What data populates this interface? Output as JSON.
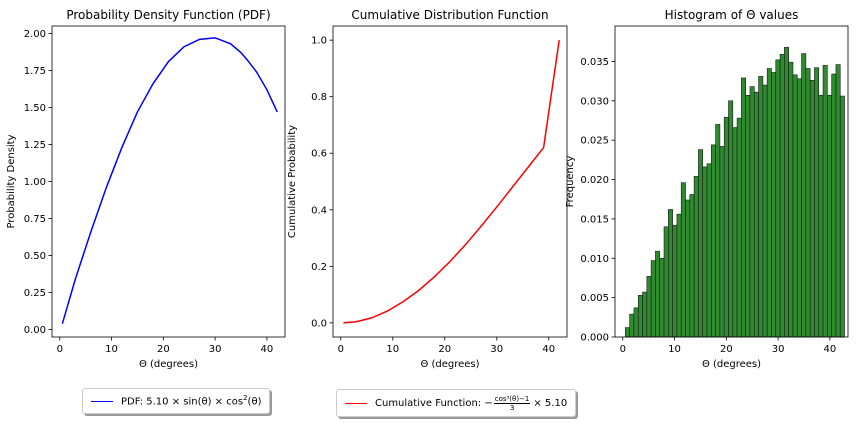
{
  "chart_data": [
    {
      "type": "line",
      "title": "Probability Density Function (PDF)",
      "xlabel": "Θ (degrees)",
      "ylabel": "Probability Density",
      "xlim": [
        -1.5,
        43.5
      ],
      "ylim": [
        -0.05,
        2.05
      ],
      "xticks": [
        0,
        10,
        20,
        30,
        40
      ],
      "yticks": [
        0.0,
        0.25,
        0.5,
        0.75,
        1.0,
        1.25,
        1.5,
        1.75,
        2.0
      ],
      "ytick_labels": [
        "0.00",
        "0.25",
        "0.50",
        "0.75",
        "1.00",
        "1.25",
        "1.50",
        "1.75",
        "2.00"
      ],
      "grid": false,
      "series": [
        {
          "name": "PDF",
          "color": "#0000ff",
          "x": [
            0.5,
            3,
            6,
            9,
            12,
            15,
            18,
            21,
            24,
            27,
            30,
            33,
            35,
            36,
            38,
            40,
            42
          ],
          "y": [
            0.04,
            0.34,
            0.66,
            0.96,
            1.23,
            1.47,
            1.66,
            1.81,
            1.91,
            1.96,
            1.97,
            1.93,
            1.87,
            1.83,
            1.74,
            1.62,
            1.47
          ]
        }
      ],
      "legend": {
        "placement": "below",
        "label_prefix": "PDF: 5.10 × sin(θ) × cos",
        "label_sup": "2",
        "label_suffix": "(θ)"
      }
    },
    {
      "type": "line",
      "title": "Cumulative Distribution Function",
      "xlabel": "Θ (degrees)",
      "ylabel": "Cumulative Probability",
      "xlim": [
        -1.5,
        43.5
      ],
      "ylim": [
        -0.05,
        1.05
      ],
      "xticks": [
        0,
        10,
        20,
        30,
        40
      ],
      "yticks": [
        0.0,
        0.2,
        0.4,
        0.6,
        0.8,
        1.0
      ],
      "ytick_labels": [
        "0.0",
        "0.2",
        "0.4",
        "0.6",
        "0.8",
        "1.0"
      ],
      "grid": false,
      "series": [
        {
          "name": "Cumulative Function",
          "color": "#ff0000",
          "x": [
            0.5,
            3,
            6,
            9,
            12,
            15,
            18,
            21,
            24,
            27,
            30,
            33,
            36,
            39,
            42
          ],
          "y": [
            0.0,
            0.004,
            0.018,
            0.042,
            0.075,
            0.115,
            0.163,
            0.217,
            0.277,
            0.342,
            0.41,
            0.48,
            0.55,
            0.62,
            1.0
          ]
        }
      ],
      "legend": {
        "placement": "below",
        "label_prefix": "Cumulative Function: −",
        "frac_num": "cos³(θ)−1",
        "frac_den": "3",
        "label_suffix": "× 5.10"
      }
    },
    {
      "type": "bar",
      "title": "Histogram of Θ values",
      "xlabel": "Θ (degrees)",
      "ylabel": "Frequency",
      "xlim": [
        -1.5,
        43.5
      ],
      "ylim": [
        0,
        0.0395
      ],
      "xticks": [
        0,
        10,
        20,
        30,
        40
      ],
      "yticks": [
        0.0,
        0.005,
        0.01,
        0.015,
        0.02,
        0.025,
        0.03,
        0.035
      ],
      "ytick_labels": [
        "0.000",
        "0.005",
        "0.010",
        "0.015",
        "0.020",
        "0.025",
        "0.030",
        "0.035"
      ],
      "grid": false,
      "bar_color": "#2e8b2e",
      "bin_start": 0.5,
      "bin_width": 0.83,
      "values": [
        0.0012,
        0.0029,
        0.0037,
        0.0053,
        0.0057,
        0.0077,
        0.0097,
        0.0109,
        0.01,
        0.014,
        0.0162,
        0.0142,
        0.0156,
        0.0196,
        0.0174,
        0.0181,
        0.0204,
        0.0238,
        0.0216,
        0.022,
        0.0244,
        0.027,
        0.0242,
        0.0279,
        0.03,
        0.0266,
        0.0278,
        0.0329,
        0.0307,
        0.0318,
        0.0311,
        0.0331,
        0.032,
        0.0341,
        0.0336,
        0.0352,
        0.0359,
        0.0368,
        0.0349,
        0.0333,
        0.0328,
        0.036,
        0.0341,
        0.0326,
        0.0342,
        0.0307,
        0.0345,
        0.0307,
        0.0334,
        0.0346,
        0.0306
      ]
    }
  ]
}
